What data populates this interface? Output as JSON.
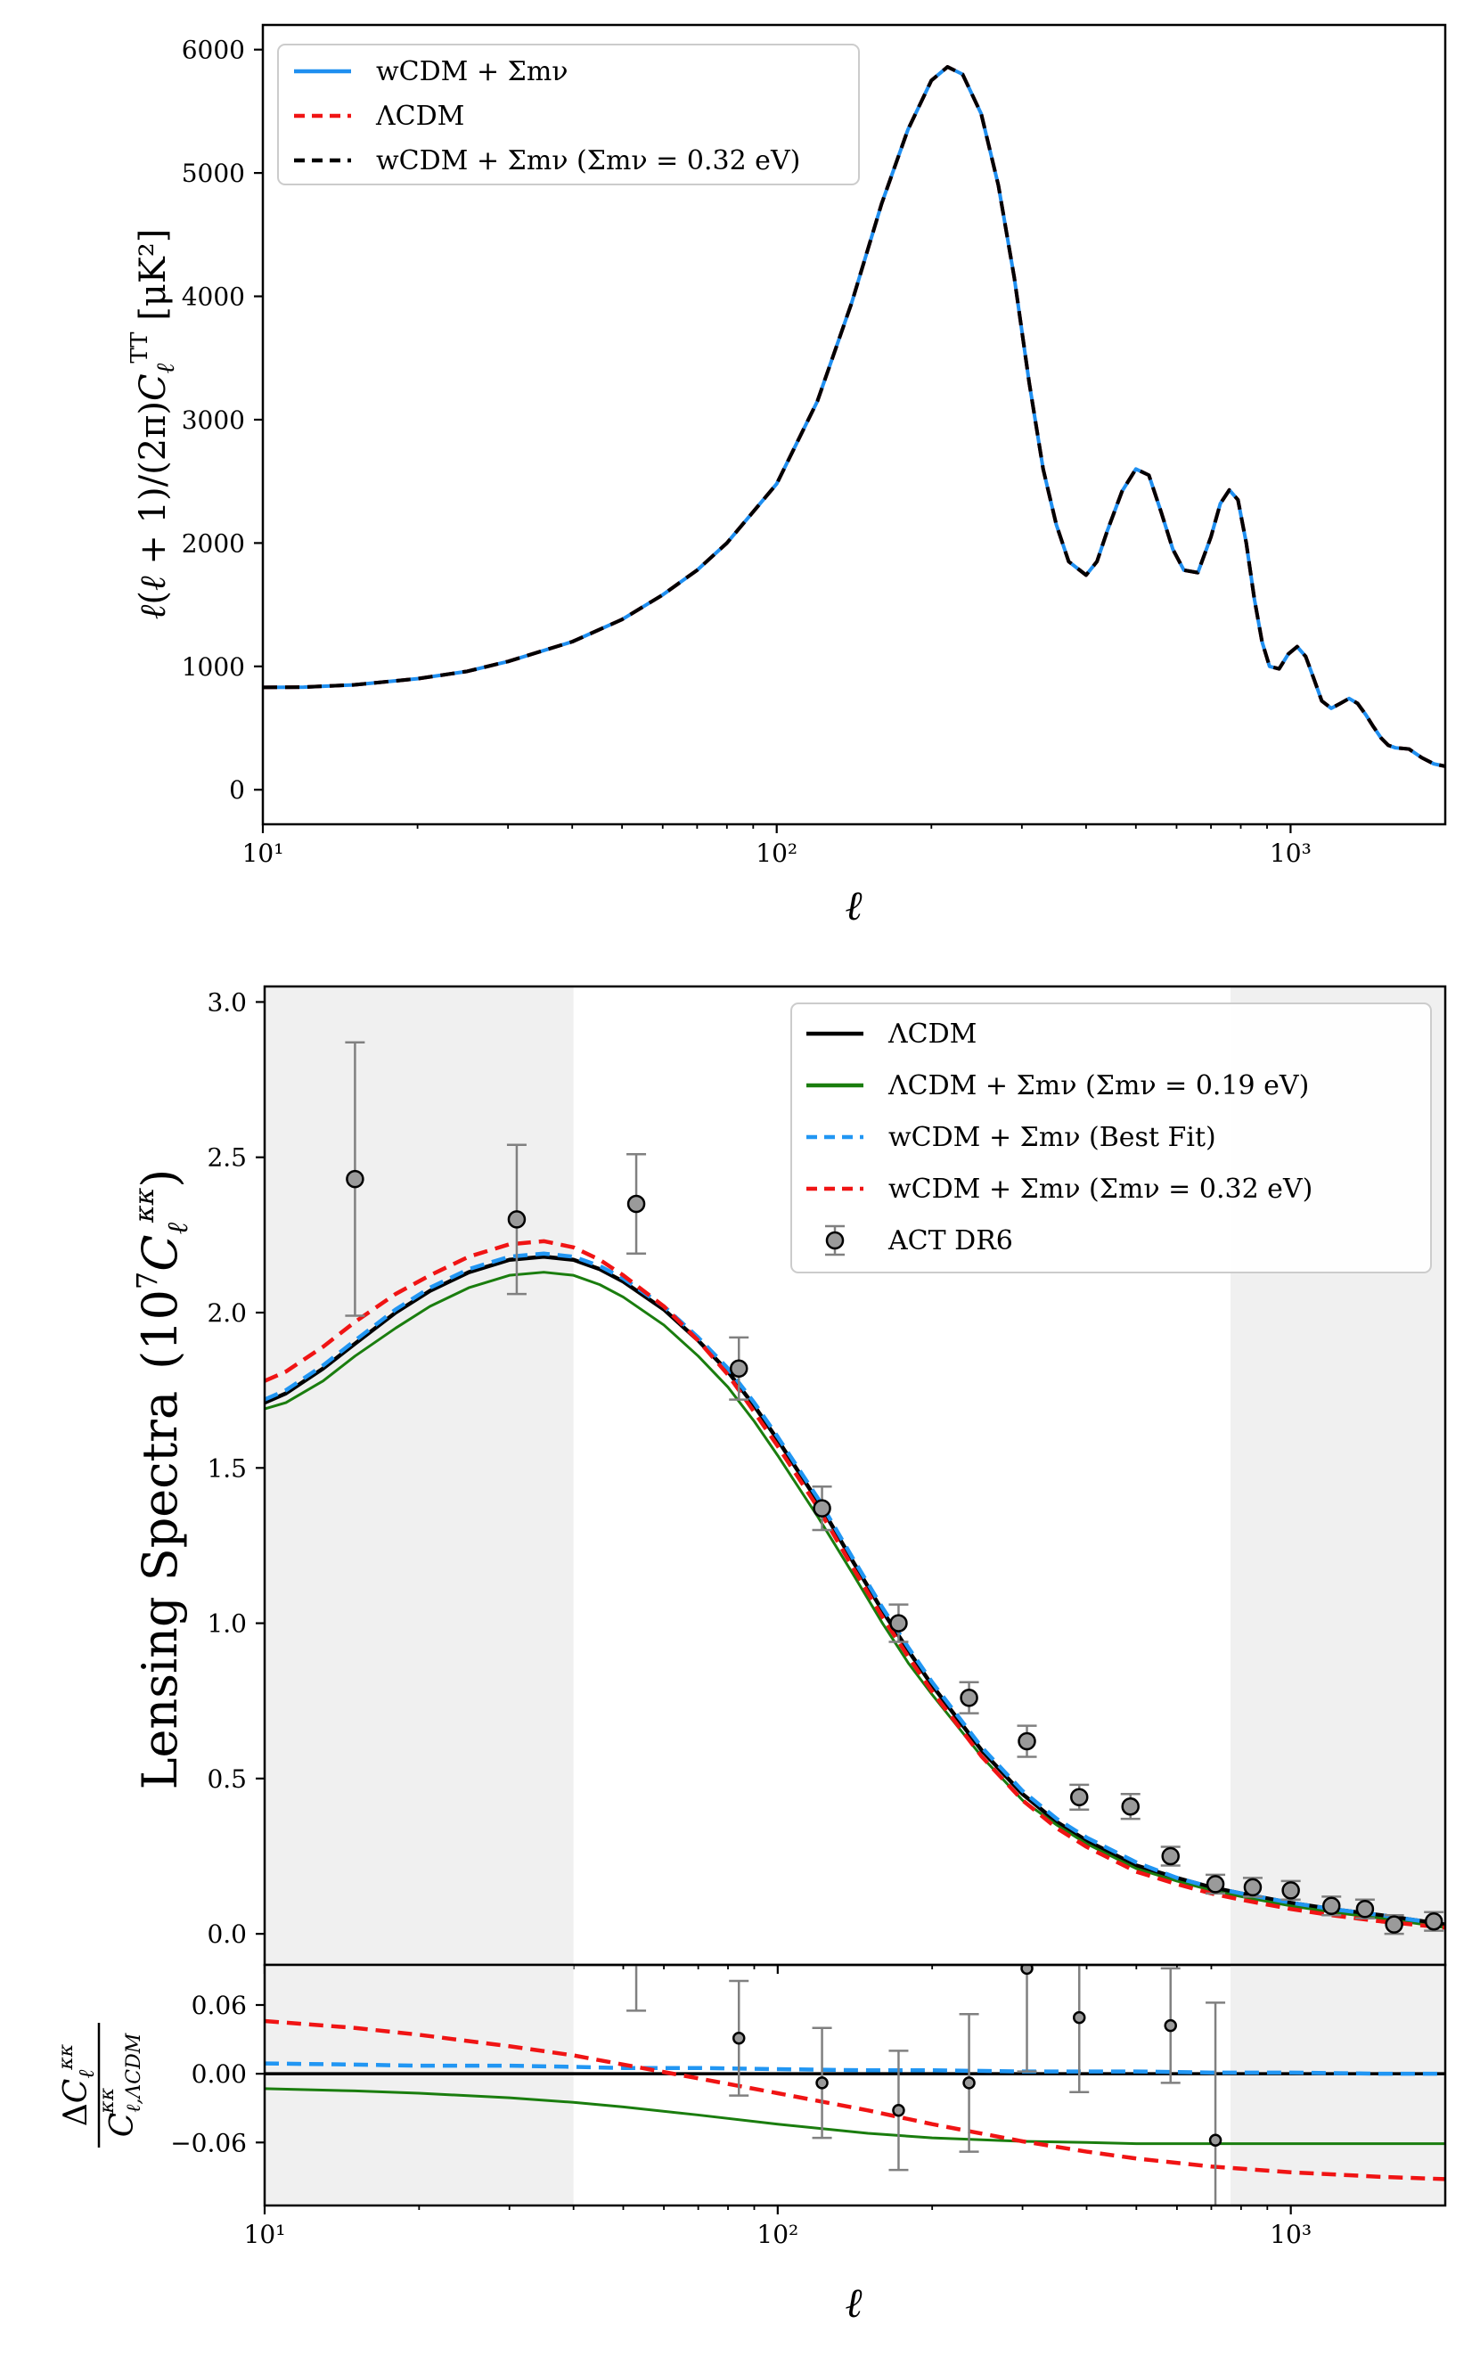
{
  "chart_data": [
    {
      "id": "tt",
      "type": "line",
      "xscale": "log",
      "xlim": [
        10,
        2000
      ],
      "ylim": [
        -280,
        6200
      ],
      "xticks": [
        {
          "v": 10,
          "label": "10¹"
        },
        {
          "v": 100,
          "label": "10²"
        },
        {
          "v": 1000,
          "label": "10³"
        }
      ],
      "yticks": [
        {
          "v": 0,
          "label": "0"
        },
        {
          "v": 1000,
          "label": "1000"
        },
        {
          "v": 2000,
          "label": "2000"
        },
        {
          "v": 3000,
          "label": "3000"
        },
        {
          "v": 4000,
          "label": "4000"
        },
        {
          "v": 5000,
          "label": "5000"
        },
        {
          "v": 6000,
          "label": "6000"
        }
      ],
      "xlabel": "ℓ",
      "ylabel": "ℓ(ℓ + 1)/(2π)Cℓ^TT [μK²]",
      "legend_position": "top-left",
      "x": [
        10,
        12,
        15,
        20,
        25,
        30,
        40,
        50,
        60,
        70,
        80,
        100,
        120,
        140,
        160,
        180,
        200,
        215,
        230,
        250,
        270,
        290,
        310,
        330,
        350,
        370,
        400,
        420,
        440,
        470,
        500,
        530,
        560,
        590,
        620,
        660,
        700,
        730,
        760,
        790,
        820,
        850,
        880,
        910,
        950,
        990,
        1030,
        1070,
        1110,
        1150,
        1200,
        1250,
        1300,
        1350,
        1400,
        1450,
        1500,
        1550,
        1600,
        1700,
        1800,
        1900,
        2000
      ],
      "series": [
        {
          "name": "wCDM + Σmν",
          "color": "#1f8ff0",
          "style": "solid",
          "values": [
            830,
            832,
            850,
            900,
            960,
            1040,
            1200,
            1380,
            1580,
            1780,
            2000,
            2480,
            3150,
            3950,
            4750,
            5350,
            5750,
            5860,
            5800,
            5480,
            4900,
            4150,
            3300,
            2600,
            2150,
            1850,
            1740,
            1850,
            2100,
            2420,
            2600,
            2550,
            2250,
            1950,
            1780,
            1760,
            2050,
            2320,
            2430,
            2350,
            2000,
            1550,
            1200,
            1000,
            980,
            1100,
            1160,
            1080,
            900,
            720,
            660,
            700,
            740,
            700,
            610,
            510,
            420,
            360,
            340,
            330,
            260,
            210,
            190
          ]
        },
        {
          "name": "ΛCDM",
          "color": "#f01414",
          "style": "dashed",
          "values": [
            830,
            832,
            850,
            900,
            960,
            1040,
            1200,
            1380,
            1580,
            1780,
            2000,
            2480,
            3150,
            3950,
            4750,
            5350,
            5750,
            5860,
            5800,
            5480,
            4900,
            4150,
            3300,
            2600,
            2150,
            1850,
            1740,
            1850,
            2100,
            2420,
            2600,
            2550,
            2250,
            1950,
            1780,
            1760,
            2050,
            2320,
            2430,
            2350,
            2000,
            1550,
            1200,
            1000,
            980,
            1100,
            1160,
            1080,
            900,
            720,
            660,
            700,
            740,
            700,
            610,
            510,
            420,
            360,
            340,
            330,
            260,
            210,
            190
          ]
        },
        {
          "name": "wCDM + Σmν (Σmν = 0.32 eV)",
          "color": "#000000",
          "style": "dashed",
          "values": [
            830,
            832,
            850,
            900,
            960,
            1040,
            1200,
            1380,
            1580,
            1780,
            2000,
            2480,
            3150,
            3950,
            4750,
            5350,
            5750,
            5860,
            5800,
            5480,
            4900,
            4150,
            3300,
            2600,
            2150,
            1850,
            1740,
            1850,
            2100,
            2420,
            2600,
            2550,
            2250,
            1950,
            1780,
            1760,
            2050,
            2320,
            2430,
            2350,
            2000,
            1550,
            1200,
            1000,
            980,
            1100,
            1160,
            1080,
            900,
            720,
            660,
            700,
            740,
            700,
            610,
            510,
            420,
            360,
            340,
            330,
            260,
            210,
            190
          ]
        }
      ]
    },
    {
      "id": "lens",
      "type": "line",
      "xscale": "log",
      "xlim": [
        10,
        2000
      ],
      "ylim": [
        -0.1,
        3.05
      ],
      "shaded_ranges": [
        [
          10,
          40
        ],
        [
          763,
          2000
        ]
      ],
      "yticks": [
        {
          "v": 0,
          "label": "0.0"
        },
        {
          "v": 0.5,
          "label": "0.5"
        },
        {
          "v": 1.0,
          "label": "1.0"
        },
        {
          "v": 1.5,
          "label": "1.5"
        },
        {
          "v": 2.0,
          "label": "2.0"
        },
        {
          "v": 2.5,
          "label": "2.5"
        },
        {
          "v": 3.0,
          "label": "3.0"
        }
      ],
      "ylabel": "Lensing Spectra",
      "ylabel_unit": "(10⁷Cℓ^κκ)",
      "legend_position": "top-right",
      "x": [
        10,
        11,
        13,
        15,
        18,
        21,
        25,
        30,
        35,
        40,
        45,
        50,
        60,
        70,
        80,
        90,
        100,
        120,
        140,
        160,
        180,
        200,
        250,
        300,
        350,
        400,
        500,
        600,
        700,
        800,
        1000,
        1200,
        1500,
        2000
      ],
      "series": [
        {
          "name": "ΛCDM",
          "color": "#000000",
          "style": "solid",
          "width": 4.5,
          "values": [
            1.71,
            1.74,
            1.82,
            1.9,
            2.0,
            2.07,
            2.13,
            2.17,
            2.18,
            2.17,
            2.14,
            2.1,
            2.01,
            1.91,
            1.81,
            1.7,
            1.59,
            1.39,
            1.2,
            1.04,
            0.91,
            0.8,
            0.59,
            0.45,
            0.36,
            0.3,
            0.22,
            0.18,
            0.15,
            0.13,
            0.1,
            0.08,
            0.06,
            0.03
          ]
        },
        {
          "name": "ΛCDM + Σmν (Σmν = 0.19 eV)",
          "color": "#1a7d0e",
          "style": "solid",
          "width": 3,
          "values": [
            1.69,
            1.71,
            1.78,
            1.86,
            1.95,
            2.02,
            2.08,
            2.12,
            2.13,
            2.12,
            2.09,
            2.05,
            1.96,
            1.86,
            1.76,
            1.65,
            1.54,
            1.34,
            1.16,
            1.0,
            0.87,
            0.77,
            0.57,
            0.43,
            0.35,
            0.29,
            0.21,
            0.17,
            0.14,
            0.12,
            0.09,
            0.07,
            0.05,
            0.02
          ]
        },
        {
          "name": "wCDM + Σmν (Best Fit)",
          "color": "#2196f3",
          "style": "dashed",
          "width": 4.5,
          "values": [
            1.72,
            1.75,
            1.83,
            1.91,
            2.01,
            2.08,
            2.14,
            2.18,
            2.19,
            2.18,
            2.15,
            2.11,
            2.02,
            1.92,
            1.82,
            1.71,
            1.6,
            1.4,
            1.21,
            1.05,
            0.92,
            0.81,
            0.6,
            0.46,
            0.37,
            0.31,
            0.23,
            0.18,
            0.15,
            0.13,
            0.1,
            0.08,
            0.06,
            0.03
          ]
        },
        {
          "name": "wCDM + Σmν (Σmν = 0.32 eV)",
          "color": "#f01414",
          "style": "dashed",
          "width": 4.5,
          "values": [
            1.78,
            1.81,
            1.89,
            1.97,
            2.06,
            2.12,
            2.18,
            2.22,
            2.23,
            2.21,
            2.17,
            2.12,
            2.02,
            1.91,
            1.8,
            1.68,
            1.57,
            1.37,
            1.18,
            1.02,
            0.89,
            0.78,
            0.57,
            0.43,
            0.34,
            0.28,
            0.2,
            0.16,
            0.13,
            0.11,
            0.08,
            0.06,
            0.04,
            0.02
          ]
        }
      ],
      "errorbars": {
        "name": "ACT DR6",
        "x": [
          15,
          31,
          53,
          84,
          122,
          172,
          236,
          306,
          387,
          487,
          583,
          713,
          843,
          1000,
          1200,
          1395,
          1590,
          1900
        ],
        "y": [
          2.43,
          2.3,
          2.35,
          1.82,
          1.37,
          1.0,
          0.76,
          0.62,
          0.44,
          0.41,
          0.25,
          0.16,
          0.15,
          0.14,
          0.09,
          0.08,
          0.03,
          0.04
        ],
        "err": [
          0.44,
          0.24,
          0.16,
          0.1,
          0.07,
          0.06,
          0.05,
          0.05,
          0.04,
          0.04,
          0.03,
          0.03,
          0.03,
          0.03,
          0.03,
          0.03,
          0.03,
          0.03
        ]
      }
    },
    {
      "id": "ratio",
      "type": "line",
      "xscale": "log",
      "xlim": [
        10,
        2000
      ],
      "ylim": [
        -0.115,
        0.095
      ],
      "shaded_ranges": [
        [
          10,
          40
        ],
        [
          763,
          2000
        ]
      ],
      "xticks": [
        {
          "v": 10,
          "label": "10¹"
        },
        {
          "v": 100,
          "label": "10²"
        },
        {
          "v": 1000,
          "label": "10³"
        }
      ],
      "yticks": [
        {
          "v": 0.06,
          "label": "0.06"
        },
        {
          "v": 0.0,
          "label": "0.00"
        },
        {
          "v": -0.06,
          "label": "−0.06"
        }
      ],
      "xlabel": "ℓ",
      "ylabel": "ΔCℓ^κκ / Cℓ,ΛCDM^κκ",
      "x": [
        10,
        15,
        20,
        30,
        40,
        50,
        70,
        100,
        150,
        200,
        300,
        400,
        500,
        700,
        1000,
        1500,
        2000
      ],
      "series": [
        {
          "name": "ΛCDM",
          "color": "#000000",
          "style": "solid",
          "width": 3.5,
          "values": [
            0,
            0,
            0,
            0,
            0,
            0,
            0,
            0,
            0,
            0,
            0,
            0,
            0,
            0,
            0,
            0,
            0
          ]
        },
        {
          "name": "ΛCDM + Σmν (Σmν = 0.19 eV)",
          "color": "#1a7d0e",
          "style": "solid",
          "width": 3,
          "values": [
            -0.013,
            -0.015,
            -0.017,
            -0.021,
            -0.025,
            -0.029,
            -0.036,
            -0.044,
            -0.052,
            -0.056,
            -0.059,
            -0.06,
            -0.061,
            -0.061,
            -0.061,
            -0.061,
            -0.061
          ]
        },
        {
          "name": "wCDM + Σmν (Best Fit)",
          "color": "#2196f3",
          "style": "dashed",
          "width": 4.5,
          "values": [
            0.009,
            0.008,
            0.007,
            0.007,
            0.006,
            0.005,
            0.005,
            0.004,
            0.003,
            0.003,
            0.002,
            0.002,
            0.002,
            0.001,
            0.001,
            0.0,
            0.0
          ]
        },
        {
          "name": "wCDM + Σmν (Σmν = 0.32 eV)",
          "color": "#f01414",
          "style": "dashed",
          "width": 4.5,
          "values": [
            0.046,
            0.04,
            0.034,
            0.024,
            0.016,
            0.008,
            -0.004,
            -0.017,
            -0.032,
            -0.044,
            -0.059,
            -0.068,
            -0.074,
            -0.081,
            -0.086,
            -0.09,
            -0.092
          ]
        }
      ],
      "errorbars": {
        "name": "ACT DR6",
        "x": [
          53,
          84,
          122,
          172,
          236,
          306,
          387,
          583,
          713
        ],
        "y": [
          0.12,
          0.031,
          -0.008,
          -0.032,
          -0.008,
          0.092,
          0.049,
          0.042,
          -0.058
        ],
        "err": [
          0.065,
          0.05,
          0.048,
          0.052,
          0.06,
          0.09,
          0.065,
          0.05,
          0.12
        ]
      }
    }
  ],
  "legend_tt": [
    {
      "label": "wCDM + Σmν",
      "color": "#1f8ff0",
      "style": "solid"
    },
    {
      "label": "ΛCDM",
      "color": "#f01414",
      "style": "dashed"
    },
    {
      "label": "wCDM + Σmν (Σmν = 0.32 eV)",
      "color": "#000000",
      "style": "dashed"
    }
  ],
  "legend_lens": [
    {
      "label": "ΛCDM",
      "color": "#000000",
      "style": "solid"
    },
    {
      "label": "ΛCDM + Σmν (Σmν = 0.19 eV)",
      "color": "#1a7d0e",
      "style": "solid"
    },
    {
      "label": "wCDM + Σmν (Best Fit)",
      "color": "#2196f3",
      "style": "dashed"
    },
    {
      "label": "wCDM + Σmν (Σmν = 0.32 eV)",
      "color": "#f01414",
      "style": "dashed"
    },
    {
      "label": "ACT DR6",
      "color": "#808080",
      "style": "errorbar"
    }
  ]
}
